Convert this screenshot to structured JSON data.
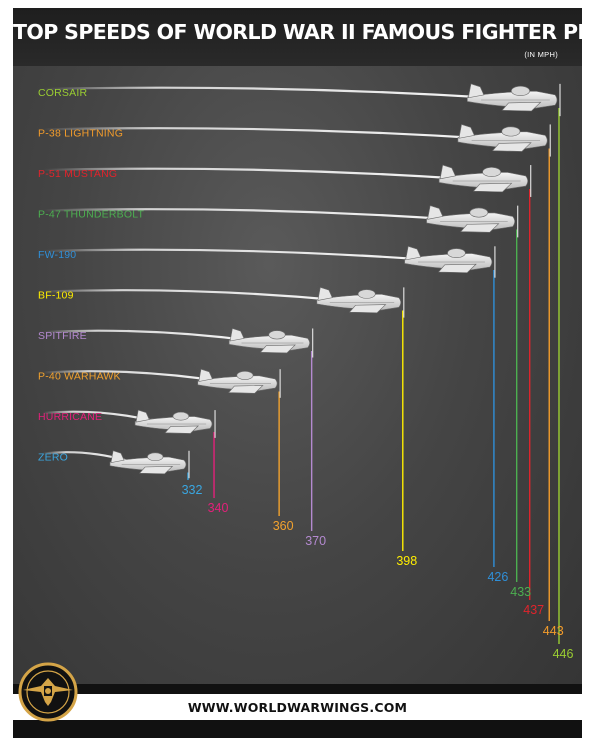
{
  "header": {
    "title": "TOP SPEEDS OF WORLD WAR II FAMOUS FIGHTER PLANES",
    "subtitle": "(IN MPH)"
  },
  "footer": {
    "url": "WWW.WORLDWARWINGS.COM"
  },
  "logo": {
    "icon": "winged-emblem-icon",
    "color": "#d4a447"
  },
  "chart_data": {
    "type": "bar",
    "title": "TOP SPEEDS OF WORLD WAR II FAMOUS FIGHTER PLANES",
    "subtitle": "(IN MPH)",
    "orientation": "horizontal",
    "categories": [
      "CORSAIR",
      "P-38 LIGHTNING",
      "P-51 MUSTANG",
      "P-47 THUNDERBOLT",
      "FW-190",
      "BF-109",
      "SPITFIRE",
      "P-40 WARHAWK",
      "HURRICANE",
      "ZERO"
    ],
    "values": [
      446,
      443,
      437,
      433,
      426,
      398,
      370,
      360,
      340,
      332
    ],
    "colors": [
      "#9acd32",
      "#f39c2b",
      "#e0242c",
      "#4caf50",
      "#2f8fd8",
      "#ffee00",
      "#b48ad0",
      "#f2a22e",
      "#e3207a",
      "#3aa6e0"
    ],
    "xrange": [
      332,
      446
    ],
    "grid": false,
    "legend": "none",
    "mark_icon": "fighter-plane-icon"
  }
}
